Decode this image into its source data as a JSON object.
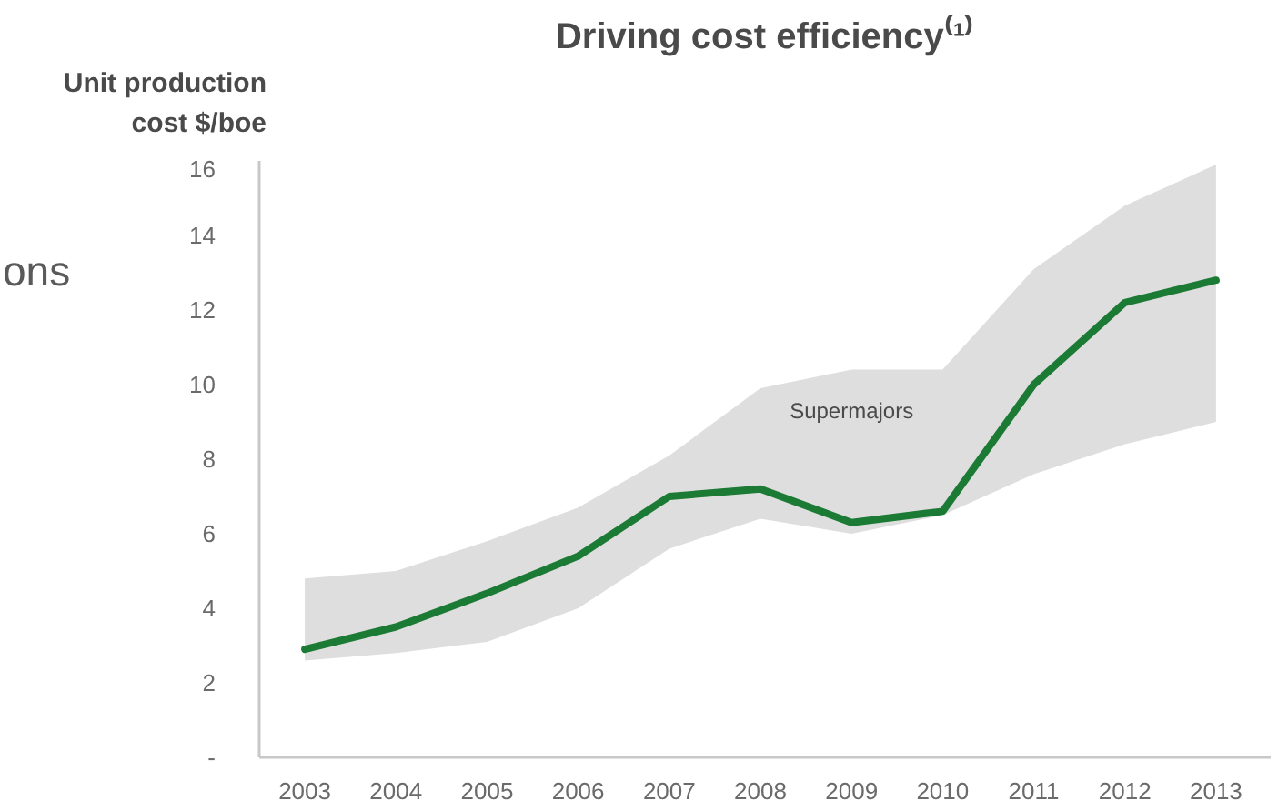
{
  "chart_data": {
    "type": "line",
    "title": "Driving cost efficiency⁽¹⁾",
    "ylabel": "Unit production\ncost $/boe",
    "x": [
      2003,
      2004,
      2005,
      2006,
      2007,
      2008,
      2009,
      2010,
      2011,
      2012,
      2013
    ],
    "series": [
      {
        "color": "#1b7a34",
        "values": [
          2.9,
          3.5,
          4.4,
          5.4,
          7.0,
          7.2,
          6.3,
          6.6,
          10.0,
          12.2,
          12.8
        ],
        "lower": [
          2.6,
          2.8,
          3.1,
          4.0,
          5.6,
          6.4,
          6.0,
          6.5,
          7.6,
          8.4,
          9.0
        ],
        "upper": [
          4.8,
          5.0,
          5.8,
          6.7,
          8.1,
          9.9,
          10.4,
          10.4,
          13.1,
          14.8,
          15.9
        ]
      }
    ],
    "xlim": [
      2002.5,
      2013.6
    ],
    "ylim": [
      0,
      16
    ],
    "xticks": [
      2003,
      2004,
      2005,
      2006,
      2007,
      2008,
      2009,
      2010,
      2011,
      2012,
      2013
    ],
    "yticks": [
      {
        "value": 0,
        "label": "-"
      },
      2,
      4,
      6,
      8,
      10,
      12,
      14,
      16
    ],
    "grid": false,
    "annotations": [
      "Supermajors",
      "ons"
    ]
  }
}
